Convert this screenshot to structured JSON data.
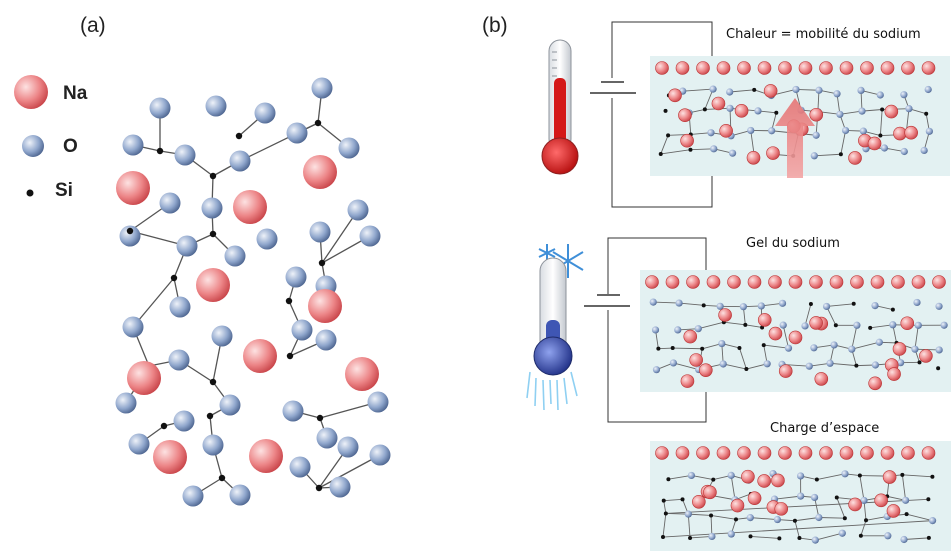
{
  "panel_a": {
    "label": "(a)",
    "legend": [
      {
        "key": "na",
        "label": "Na"
      },
      {
        "key": "o",
        "label": "O"
      },
      {
        "key": "si",
        "label": "Si"
      }
    ]
  },
  "panel_b": {
    "label": "(b)",
    "states": [
      {
        "key": "heat",
        "caption": "Chaleur = mobilité du sodium",
        "thermometer": "hot-thermometer-icon"
      },
      {
        "key": "gel",
        "caption": "Gel du sodium",
        "thermometer": "cold-thermometer-icon"
      },
      {
        "key": "charge",
        "caption": "Charge d’espace"
      }
    ]
  },
  "colors": {
    "na": "#ec8486",
    "o": "#8fa6cc",
    "si": "#111111",
    "glass_bg": "#e3f1f2",
    "arrow": "#ef8e8e",
    "hot": "#d41818",
    "cold": "#3f56b4"
  }
}
